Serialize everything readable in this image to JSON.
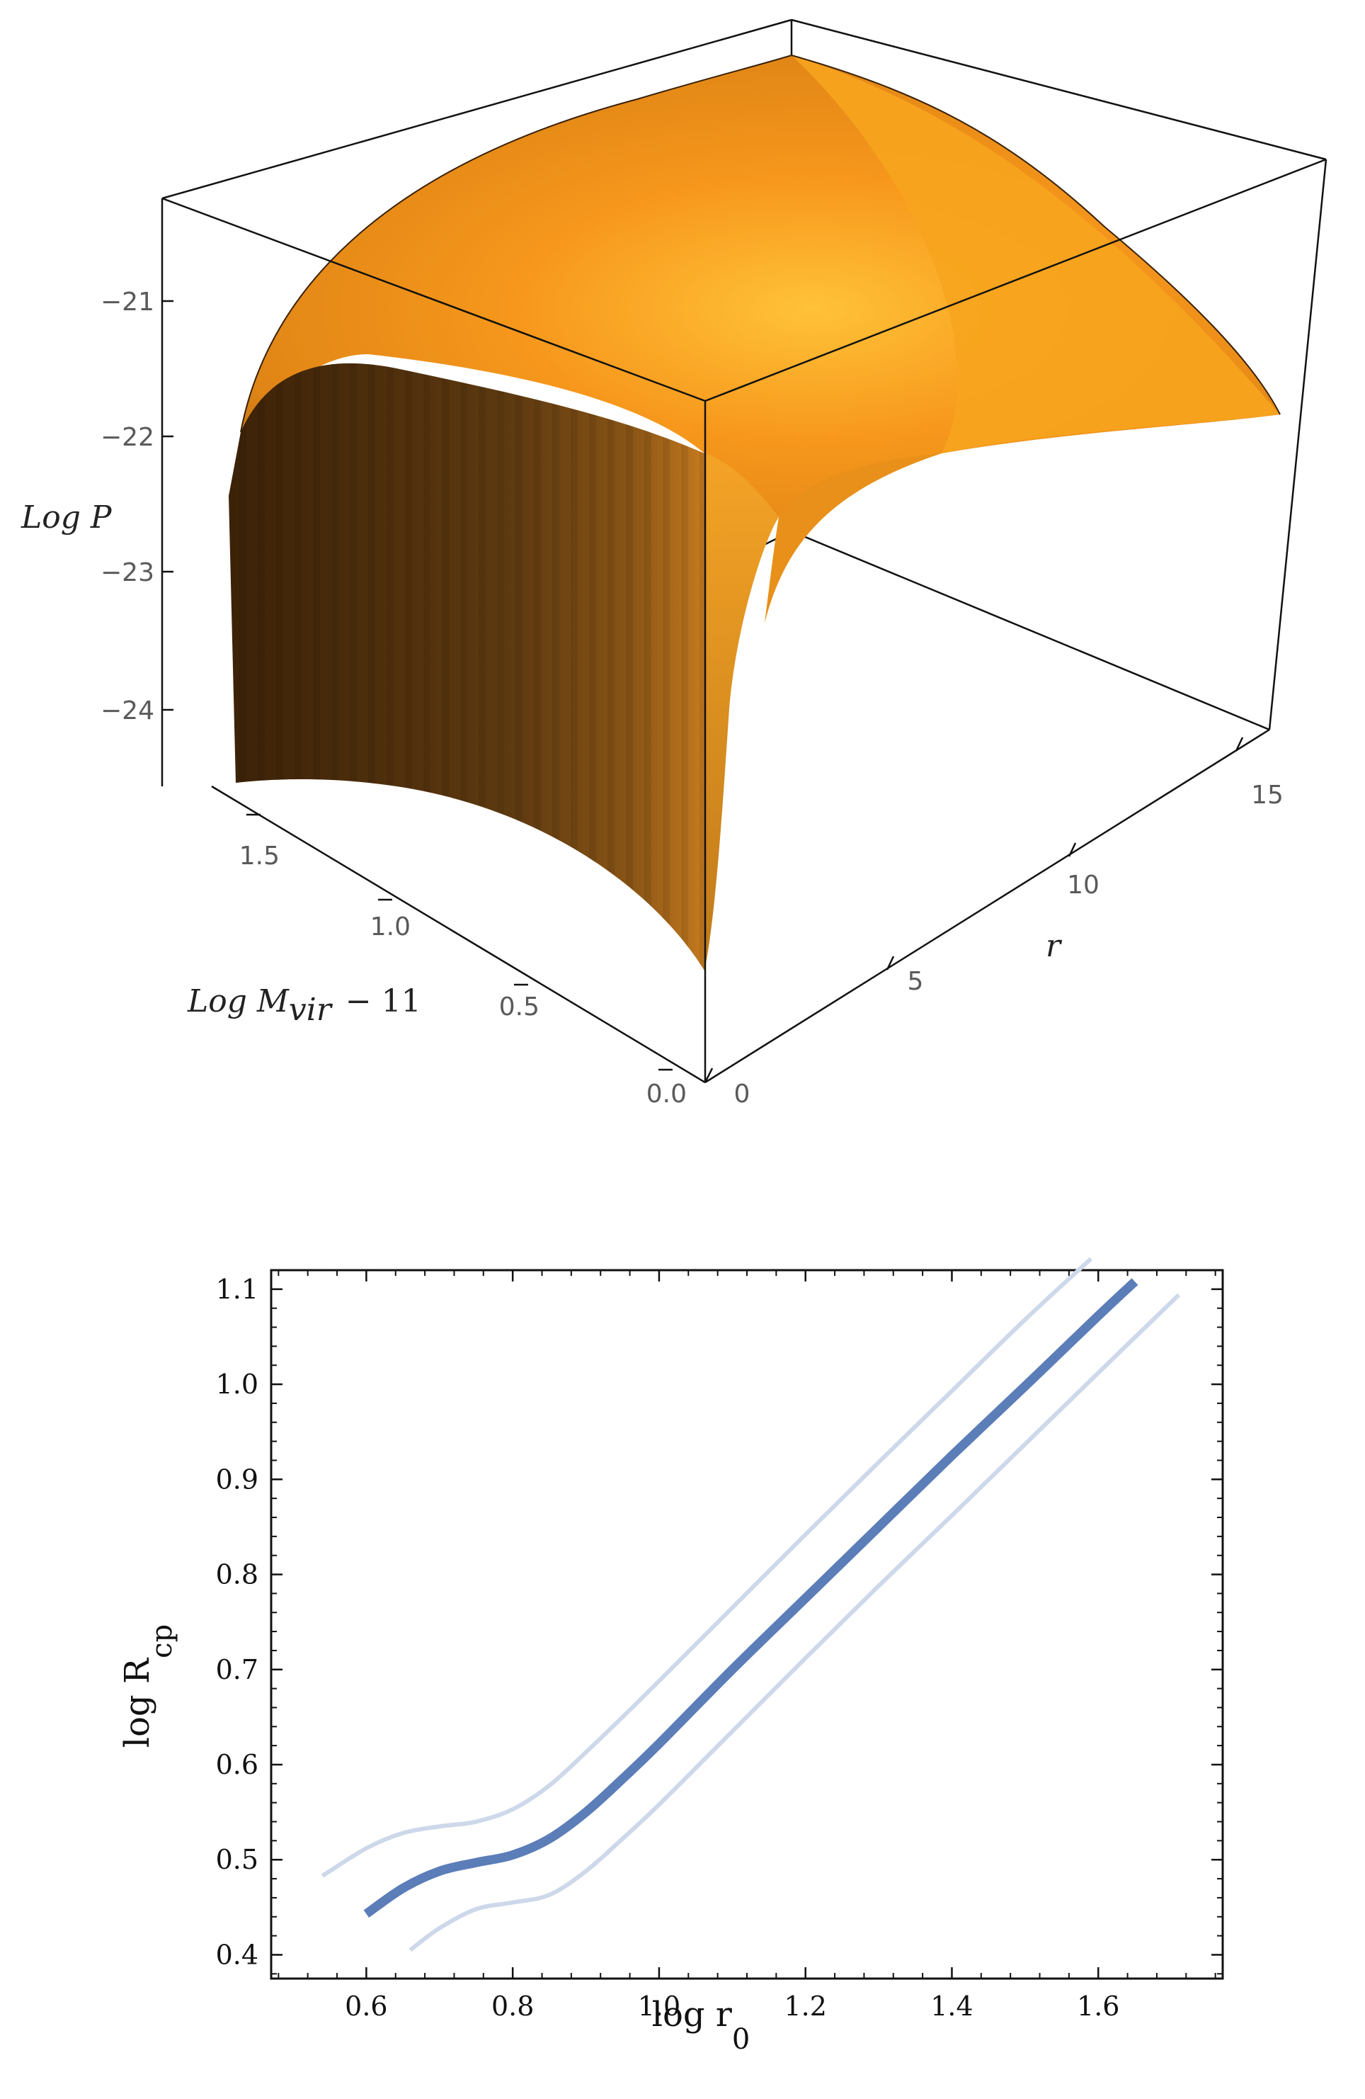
{
  "chart_data": [
    {
      "type": "surface",
      "zlabel": "Log P",
      "xlabel": "r",
      "ylabel_main": "Log M",
      "ylabel_sub": "vir",
      "ylabel_suffix": "− 11",
      "x_ticks": [
        "0",
        "5",
        "10",
        "15"
      ],
      "y_ticks": [
        "0.0",
        "0.5",
        "1.0",
        "1.5"
      ],
      "z_ticks": [
        "−21",
        "−22",
        "−23",
        "−24"
      ],
      "xlim": [
        0,
        17
      ],
      "ylim": [
        0,
        1.7
      ],
      "zlim": [
        -24.5,
        -20.4
      ],
      "surface_color": "#f5a020",
      "shadow_color": "#4a2a08"
    },
    {
      "type": "line",
      "xlabel_main": "log r",
      "xlabel_sub": "0",
      "ylabel_main": "log R",
      "ylabel_sub": "cp",
      "xlim": [
        0.47,
        1.77
      ],
      "ylim": [
        0.375,
        1.12
      ],
      "x_ticks": [
        "0.6",
        "0.8",
        "1.0",
        "1.2",
        "1.4",
        "1.6"
      ],
      "y_ticks": [
        "0.4",
        "0.5",
        "0.6",
        "0.7",
        "0.8",
        "0.9",
        "1.0",
        "1.1"
      ],
      "series": [
        {
          "color": "#5b7db8",
          "x": [
            0.6,
            0.65,
            0.7,
            0.75,
            0.8,
            0.85,
            0.9,
            0.95,
            1.0,
            1.1,
            1.2,
            1.3,
            1.4,
            1.5,
            1.6,
            1.65
          ],
          "y": [
            0.443,
            0.47,
            0.488,
            0.497,
            0.505,
            0.522,
            0.55,
            0.585,
            0.622,
            0.7,
            0.775,
            0.85,
            0.925,
            0.998,
            1.072,
            1.108
          ]
        },
        {
          "color": "#cdd8ea",
          "x": [
            0.54,
            0.6,
            0.65,
            0.7,
            0.75,
            0.8,
            0.85,
            0.9,
            0.95,
            1.0,
            1.1,
            1.2,
            1.3,
            1.4,
            1.5,
            1.59
          ],
          "y": [
            0.483,
            0.512,
            0.528,
            0.535,
            0.54,
            0.553,
            0.578,
            0.613,
            0.65,
            0.688,
            0.765,
            0.842,
            0.918,
            0.993,
            1.068,
            1.132
          ]
        },
        {
          "color": "#cdd8ea",
          "x": [
            0.66,
            0.7,
            0.75,
            0.8,
            0.85,
            0.9,
            0.95,
            1.0,
            1.1,
            1.2,
            1.3,
            1.4,
            1.5,
            1.6,
            1.71
          ],
          "y": [
            0.405,
            0.428,
            0.448,
            0.455,
            0.463,
            0.488,
            0.522,
            0.558,
            0.635,
            0.712,
            0.788,
            0.862,
            0.937,
            1.012,
            1.094
          ]
        }
      ]
    }
  ]
}
